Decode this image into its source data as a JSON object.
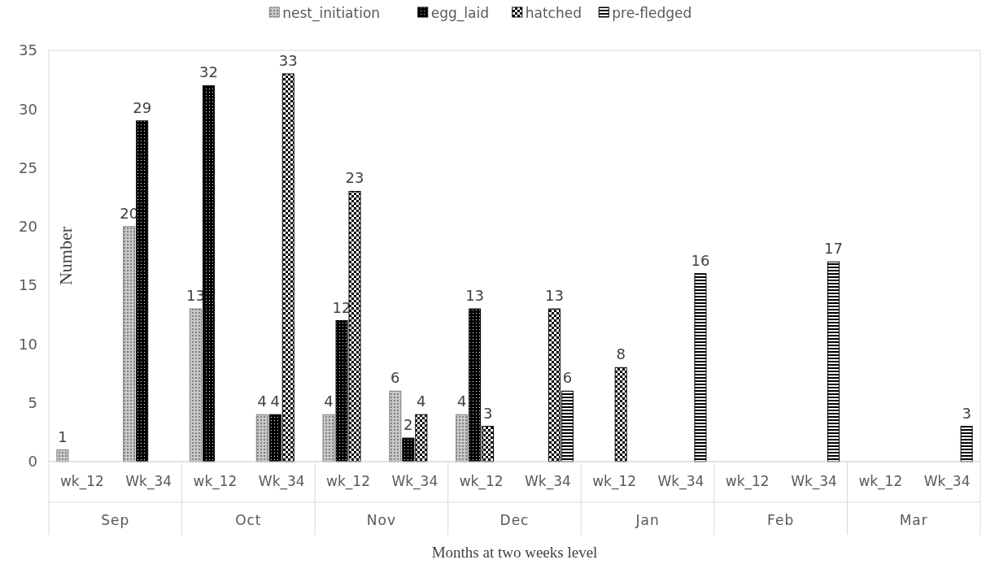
{
  "chart_data": {
    "type": "bar",
    "xlabel": "Months at two weeks level",
    "ylabel": "Number",
    "categories": [
      "wk_12",
      "Wk_34",
      "wk_12",
      "Wk_34",
      "wk_12",
      "Wk_34",
      "wk_12",
      "Wk_34",
      "wk_12",
      "Wk_34",
      "wk_12",
      "Wk_34",
      "wk_12",
      "Wk_34"
    ],
    "annotations": [
      "Sep",
      "Oct",
      "Nov",
      "Dec",
      "Jan",
      "Feb",
      "Mar"
    ],
    "series": [
      {
        "name": "nest_initiation",
        "color": "#808080",
        "values": [
          1,
          20,
          13,
          4,
          4,
          6,
          4,
          null,
          null,
          null,
          null,
          null,
          null,
          null
        ]
      },
      {
        "name": "egg_laid",
        "color": "#000000",
        "values": [
          null,
          29,
          32,
          4,
          12,
          2,
          13,
          null,
          null,
          null,
          null,
          null,
          null,
          null
        ]
      },
      {
        "name": "hatched",
        "color": "#000000",
        "values": [
          null,
          null,
          null,
          33,
          23,
          4,
          3,
          13,
          8,
          null,
          null,
          null,
          null,
          null
        ]
      },
      {
        "name": "pre-fledged",
        "color": "#000000",
        "values": [
          null,
          null,
          null,
          null,
          null,
          null,
          null,
          6,
          null,
          16,
          null,
          17,
          null,
          3
        ]
      }
    ],
    "ylim": [
      0,
      35
    ],
    "yticks": [
      0,
      5,
      10,
      15,
      20,
      25,
      30,
      35
    ],
    "legend": "top",
    "data_labels": true
  }
}
